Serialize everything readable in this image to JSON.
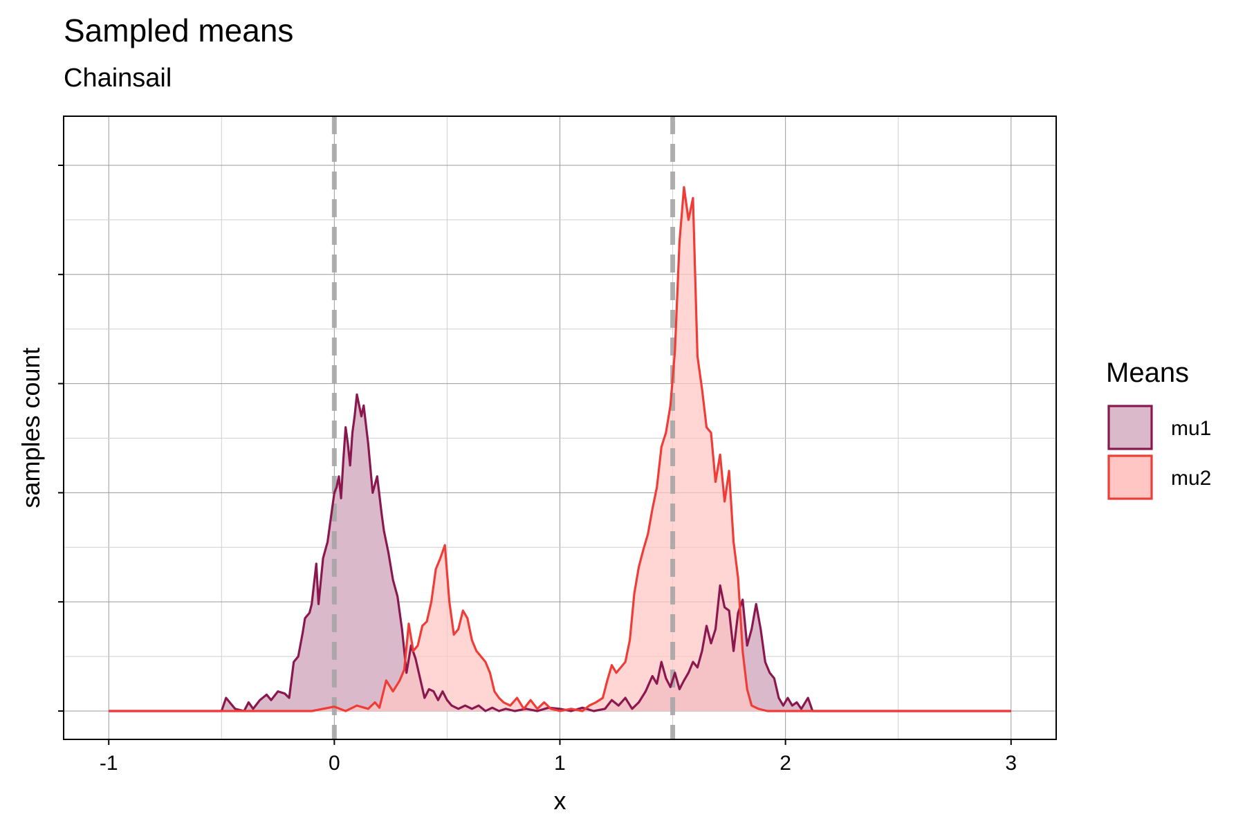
{
  "chart_data": {
    "type": "area",
    "title": "Sampled means",
    "subtitle": "Chainsail",
    "xlabel": "x",
    "ylabel": "samples count",
    "xlim": [
      -1.2,
      3.2
    ],
    "ylim": [
      -0.26,
      5.45
    ],
    "x_ticks": [
      -1,
      0,
      1,
      2,
      3
    ],
    "x_tick_labels": [
      "-1",
      "0",
      "1",
      "2",
      "3"
    ],
    "y_ticks_shown": false,
    "grid": true,
    "legend": {
      "title": "Means",
      "position": "right"
    },
    "reference_lines": [
      {
        "x": 0,
        "style": "dashed",
        "color": "#a6a6a6"
      },
      {
        "x": 1.5,
        "style": "dashed",
        "color": "#a6a6a6"
      }
    ],
    "series": [
      {
        "name": "mu1",
        "line_color": "#8b174f",
        "fill_color": "#d9b9ca",
        "points": [
          [
            -1.0,
            0
          ],
          [
            -0.5,
            0
          ],
          [
            -0.48,
            0.12
          ],
          [
            -0.44,
            0.02
          ],
          [
            -0.4,
            0
          ],
          [
            -0.38,
            0.08
          ],
          [
            -0.36,
            0.02
          ],
          [
            -0.33,
            0.1
          ],
          [
            -0.3,
            0.15
          ],
          [
            -0.28,
            0.1
          ],
          [
            -0.25,
            0.18
          ],
          [
            -0.22,
            0.16
          ],
          [
            -0.2,
            0.12
          ],
          [
            -0.18,
            0.45
          ],
          [
            -0.16,
            0.5
          ],
          [
            -0.14,
            0.72
          ],
          [
            -0.13,
            0.85
          ],
          [
            -0.11,
            0.9
          ],
          [
            -0.1,
            0.98
          ],
          [
            -0.08,
            1.35
          ],
          [
            -0.07,
            0.98
          ],
          [
            -0.05,
            1.4
          ],
          [
            -0.03,
            1.55
          ],
          [
            -0.01,
            1.85
          ],
          [
            0.0,
            2.0
          ],
          [
            0.01,
            2.05
          ],
          [
            0.02,
            2.15
          ],
          [
            0.03,
            1.95
          ],
          [
            0.04,
            2.3
          ],
          [
            0.05,
            2.6
          ],
          [
            0.06,
            2.45
          ],
          [
            0.07,
            2.25
          ],
          [
            0.08,
            2.55
          ],
          [
            0.09,
            2.7
          ],
          [
            0.1,
            2.9
          ],
          [
            0.12,
            2.7
          ],
          [
            0.13,
            2.8
          ],
          [
            0.15,
            2.45
          ],
          [
            0.17,
            2.0
          ],
          [
            0.19,
            2.15
          ],
          [
            0.21,
            1.8
          ],
          [
            0.22,
            1.65
          ],
          [
            0.24,
            1.45
          ],
          [
            0.26,
            1.2
          ],
          [
            0.28,
            1.05
          ],
          [
            0.3,
            0.75
          ],
          [
            0.31,
            0.55
          ],
          [
            0.32,
            0.35
          ],
          [
            0.34,
            0.6
          ],
          [
            0.36,
            0.48
          ],
          [
            0.38,
            0.3
          ],
          [
            0.4,
            0.12
          ],
          [
            0.42,
            0.2
          ],
          [
            0.44,
            0.18
          ],
          [
            0.46,
            0.1
          ],
          [
            0.48,
            0.18
          ],
          [
            0.5,
            0.1
          ],
          [
            0.52,
            0.05
          ],
          [
            0.55,
            0.02
          ],
          [
            0.58,
            0.05
          ],
          [
            0.61,
            0.02
          ],
          [
            0.64,
            0.05
          ],
          [
            0.67,
            0
          ],
          [
            0.7,
            0.03
          ],
          [
            0.73,
            0
          ],
          [
            0.76,
            0.02
          ],
          [
            0.8,
            0
          ],
          [
            0.85,
            0.02
          ],
          [
            0.9,
            0
          ],
          [
            0.95,
            0.03
          ],
          [
            1.0,
            0.02
          ],
          [
            1.05,
            0
          ],
          [
            1.1,
            0.03
          ],
          [
            1.15,
            0
          ],
          [
            1.2,
            0.02
          ],
          [
            1.23,
            0.1
          ],
          [
            1.26,
            0.05
          ],
          [
            1.29,
            0.12
          ],
          [
            1.32,
            0.02
          ],
          [
            1.35,
            0.08
          ],
          [
            1.38,
            0.18
          ],
          [
            1.41,
            0.32
          ],
          [
            1.43,
            0.25
          ],
          [
            1.45,
            0.45
          ],
          [
            1.47,
            0.3
          ],
          [
            1.49,
            0.22
          ],
          [
            1.51,
            0.35
          ],
          [
            1.53,
            0.2
          ],
          [
            1.55,
            0.28
          ],
          [
            1.57,
            0.35
          ],
          [
            1.59,
            0.45
          ],
          [
            1.61,
            0.4
          ],
          [
            1.63,
            0.55
          ],
          [
            1.65,
            0.78
          ],
          [
            1.67,
            0.62
          ],
          [
            1.69,
            0.75
          ],
          [
            1.71,
            1.15
          ],
          [
            1.73,
            0.95
          ],
          [
            1.75,
            0.92
          ],
          [
            1.77,
            0.55
          ],
          [
            1.79,
            0.9
          ],
          [
            1.81,
            1.02
          ],
          [
            1.83,
            0.6
          ],
          [
            1.85,
            0.75
          ],
          [
            1.87,
            0.98
          ],
          [
            1.89,
            0.75
          ],
          [
            1.91,
            0.45
          ],
          [
            1.93,
            0.35
          ],
          [
            1.95,
            0.3
          ],
          [
            1.97,
            0.12
          ],
          [
            1.99,
            0.05
          ],
          [
            2.01,
            0.12
          ],
          [
            2.03,
            0.05
          ],
          [
            2.05,
            0.08
          ],
          [
            2.07,
            0.02
          ],
          [
            2.1,
            0.12
          ],
          [
            2.12,
            0
          ],
          [
            2.2,
            0
          ],
          [
            3.0,
            0
          ]
        ]
      },
      {
        "name": "mu2",
        "line_color": "#f03c37",
        "fill_color": "#ffc6c4",
        "points": [
          [
            -1.0,
            0
          ],
          [
            -0.5,
            0
          ],
          [
            -0.1,
            0
          ],
          [
            0.0,
            0.04
          ],
          [
            0.05,
            0
          ],
          [
            0.1,
            0.05
          ],
          [
            0.15,
            0.02
          ],
          [
            0.18,
            0.08
          ],
          [
            0.2,
            0.03
          ],
          [
            0.23,
            0.28
          ],
          [
            0.26,
            0.18
          ],
          [
            0.29,
            0.28
          ],
          [
            0.31,
            0.38
          ],
          [
            0.33,
            0.8
          ],
          [
            0.35,
            0.55
          ],
          [
            0.37,
            0.6
          ],
          [
            0.39,
            0.78
          ],
          [
            0.41,
            0.82
          ],
          [
            0.43,
            1.0
          ],
          [
            0.45,
            1.3
          ],
          [
            0.47,
            1.4
          ],
          [
            0.49,
            1.52
          ],
          [
            0.51,
            1.0
          ],
          [
            0.53,
            0.7
          ],
          [
            0.55,
            0.75
          ],
          [
            0.57,
            0.92
          ],
          [
            0.59,
            0.85
          ],
          [
            0.61,
            0.65
          ],
          [
            0.63,
            0.55
          ],
          [
            0.65,
            0.5
          ],
          [
            0.67,
            0.45
          ],
          [
            0.69,
            0.35
          ],
          [
            0.71,
            0.18
          ],
          [
            0.73,
            0.12
          ],
          [
            0.75,
            0.08
          ],
          [
            0.78,
            0.05
          ],
          [
            0.81,
            0.12
          ],
          [
            0.84,
            0.02
          ],
          [
            0.87,
            0.1
          ],
          [
            0.9,
            0.02
          ],
          [
            0.93,
            0.08
          ],
          [
            0.96,
            0.02
          ],
          [
            1.0,
            0
          ],
          [
            1.05,
            0.02
          ],
          [
            1.1,
            0
          ],
          [
            1.13,
            0.05
          ],
          [
            1.16,
            0.08
          ],
          [
            1.19,
            0.12
          ],
          [
            1.21,
            0.28
          ],
          [
            1.23,
            0.42
          ],
          [
            1.25,
            0.35
          ],
          [
            1.27,
            0.4
          ],
          [
            1.29,
            0.45
          ],
          [
            1.31,
            0.65
          ],
          [
            1.33,
            1.08
          ],
          [
            1.35,
            1.32
          ],
          [
            1.37,
            1.48
          ],
          [
            1.39,
            1.62
          ],
          [
            1.41,
            1.85
          ],
          [
            1.43,
            2.05
          ],
          [
            1.45,
            2.42
          ],
          [
            1.47,
            2.55
          ],
          [
            1.49,
            2.8
          ],
          [
            1.51,
            3.3
          ],
          [
            1.53,
            4.3
          ],
          [
            1.55,
            4.8
          ],
          [
            1.57,
            4.5
          ],
          [
            1.59,
            4.7
          ],
          [
            1.61,
            3.25
          ],
          [
            1.63,
            2.95
          ],
          [
            1.65,
            2.6
          ],
          [
            1.67,
            2.55
          ],
          [
            1.69,
            2.1
          ],
          [
            1.71,
            2.35
          ],
          [
            1.73,
            1.92
          ],
          [
            1.75,
            2.2
          ],
          [
            1.77,
            1.55
          ],
          [
            1.79,
            1.22
          ],
          [
            1.81,
            0.55
          ],
          [
            1.83,
            0.2
          ],
          [
            1.85,
            0.05
          ],
          [
            1.88,
            0.02
          ],
          [
            1.92,
            0
          ],
          [
            2.0,
            0
          ],
          [
            3.0,
            0
          ]
        ]
      }
    ]
  }
}
